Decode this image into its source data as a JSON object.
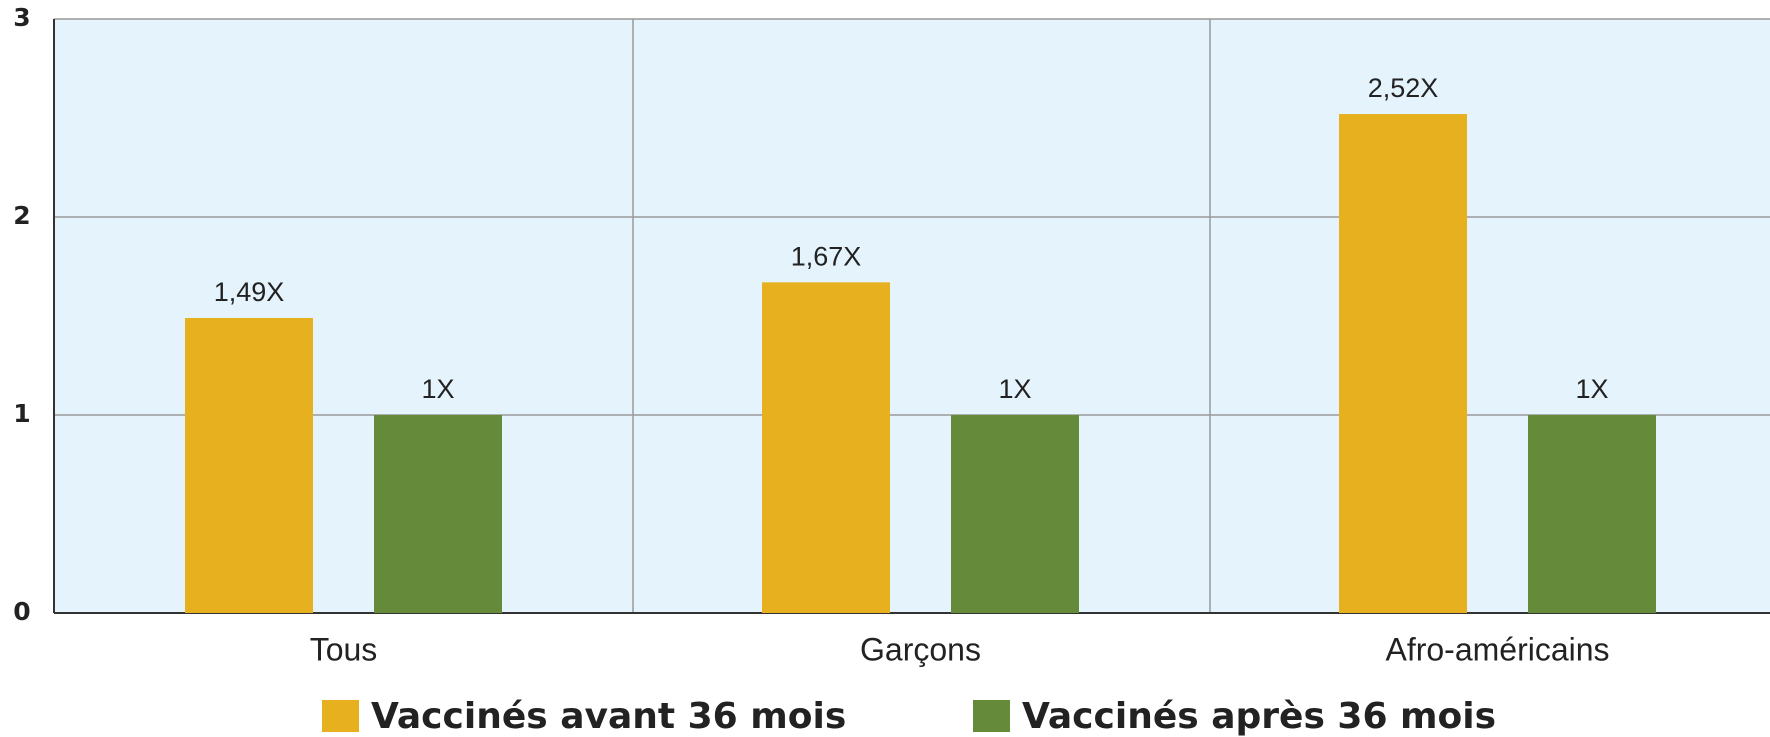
{
  "chart_data": {
    "type": "bar",
    "categories": [
      "Tous",
      "Garçons",
      "Afro-américains"
    ],
    "series": [
      {
        "name": "Vaccinés avant 36 mois",
        "color": "#e6b01e",
        "values": [
          1.49,
          1.67,
          2.52
        ],
        "value_labels": [
          "1,49X",
          "1,67X",
          "2,52X"
        ]
      },
      {
        "name": "Vaccinés après 36 mois",
        "color": "#648a3a",
        "values": [
          1,
          1,
          1
        ],
        "value_labels": [
          "1X",
          "1X",
          "1X"
        ]
      }
    ],
    "ylim": [
      0,
      3
    ],
    "yticks": [
      0,
      1,
      2,
      3
    ],
    "grid": true,
    "legend": "bottom"
  }
}
